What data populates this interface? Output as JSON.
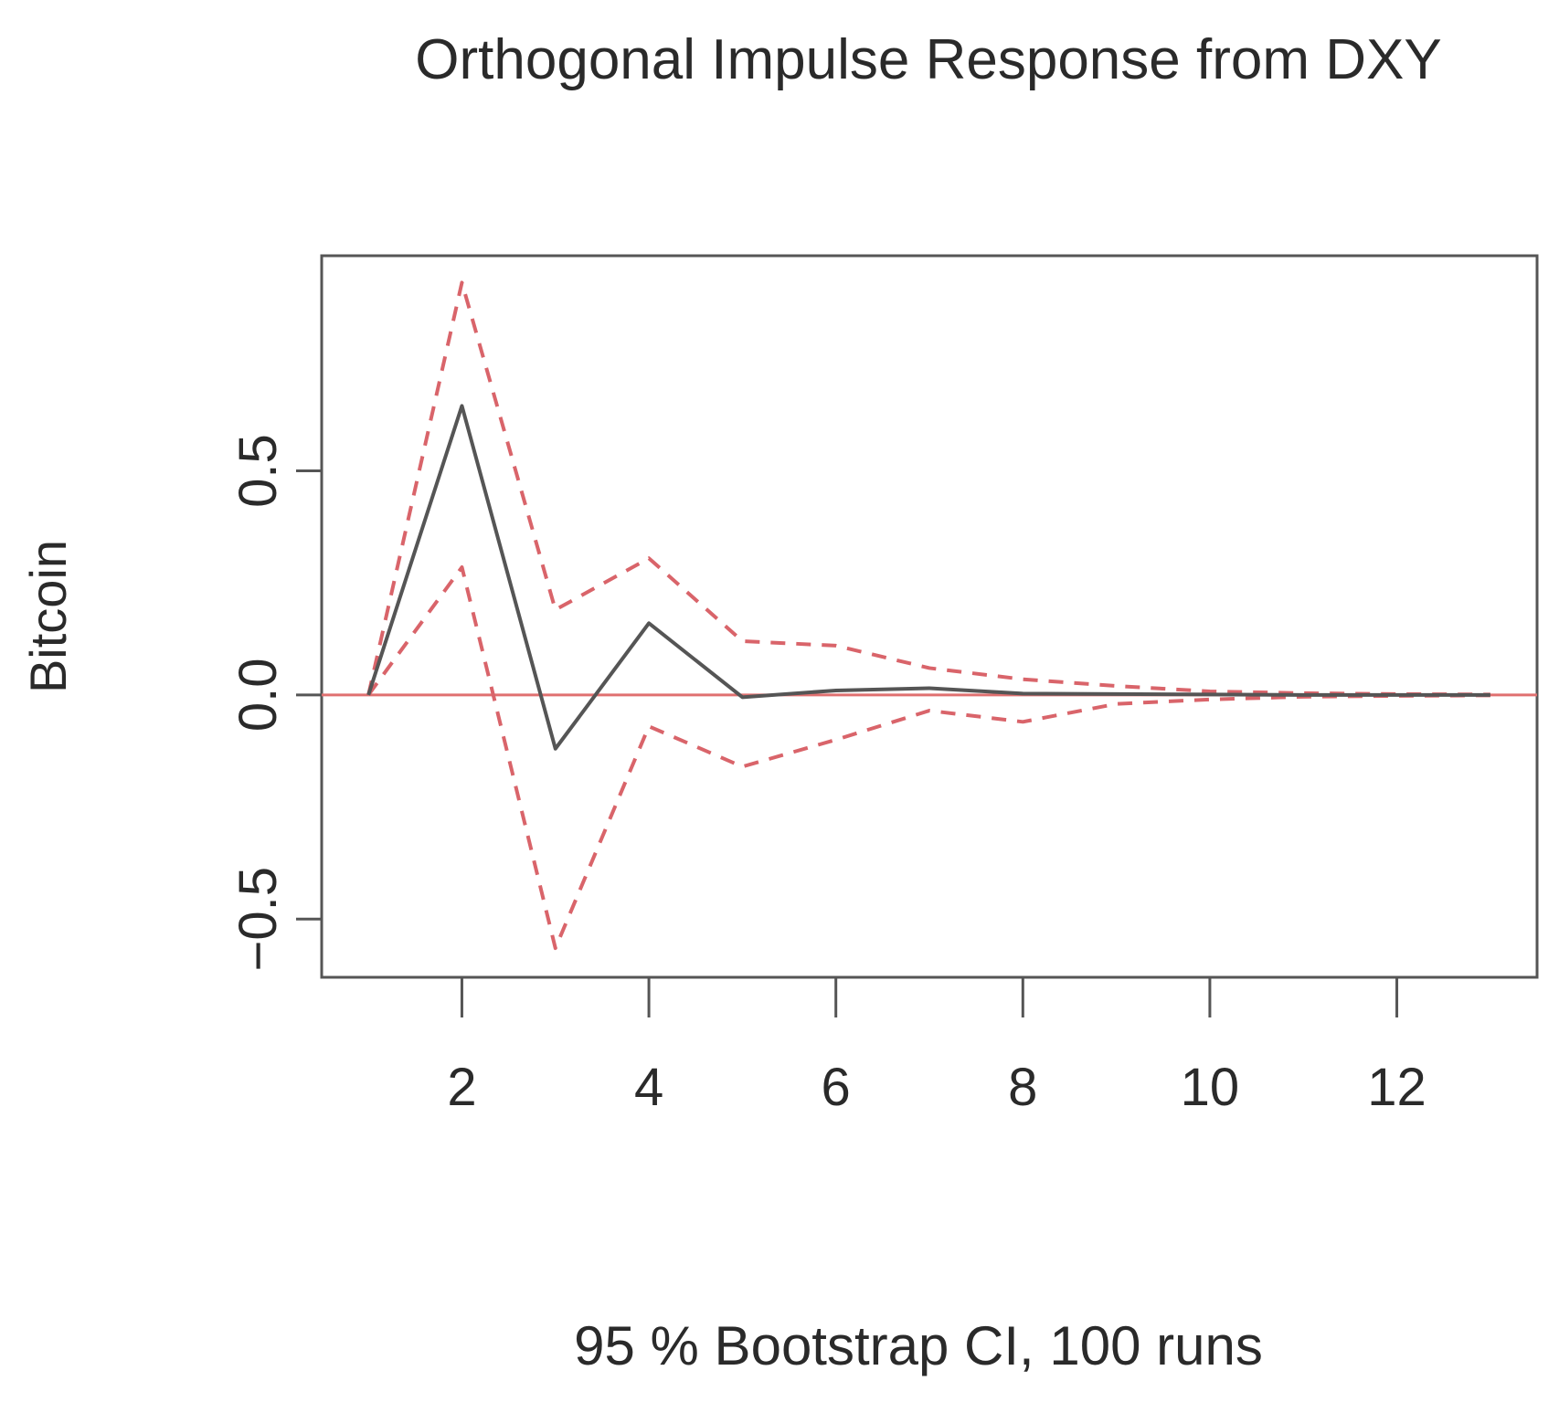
{
  "chart_data": {
    "type": "line",
    "title": "Orthogonal Impulse Response from DXY",
    "xlabel": "95 % Bootstrap CI,  100 runs",
    "ylabel": "Bitcoin",
    "xlim": [
      0.5,
      13.5
    ],
    "ylim": [
      -0.63,
      0.98
    ],
    "x_ticks": [
      2,
      4,
      6,
      8,
      10,
      12
    ],
    "x_tick_labels": [
      "2",
      "4",
      "6",
      "8",
      "10",
      "12"
    ],
    "y_ticks": [
      -0.5,
      0.0,
      0.5
    ],
    "y_tick_labels": [
      "−0.5",
      "0.0",
      "0.5"
    ],
    "grid": false,
    "x": [
      1,
      2,
      3,
      4,
      5,
      6,
      7,
      8,
      9,
      10,
      11,
      12,
      13
    ],
    "series": [
      {
        "role": "response",
        "values": [
          0.0,
          0.645,
          -0.12,
          0.16,
          -0.005,
          0.01,
          0.015,
          0.003,
          0.002,
          0.001,
          0.0,
          0.0,
          0.0
        ]
      },
      {
        "role": "upper",
        "values": [
          0.0,
          0.92,
          0.19,
          0.305,
          0.12,
          0.11,
          0.06,
          0.035,
          0.02,
          0.008,
          0.004,
          0.002,
          0.001
        ]
      },
      {
        "role": "lower",
        "values": [
          0.0,
          0.285,
          -0.565,
          -0.07,
          -0.16,
          -0.1,
          -0.035,
          -0.06,
          -0.02,
          -0.01,
          -0.004,
          -0.002,
          -0.001
        ]
      }
    ],
    "reference_line": 0,
    "colors": {
      "response": "#555555",
      "band": "#d9646a",
      "zero_line": "#e07070",
      "frame": "#555555"
    }
  }
}
